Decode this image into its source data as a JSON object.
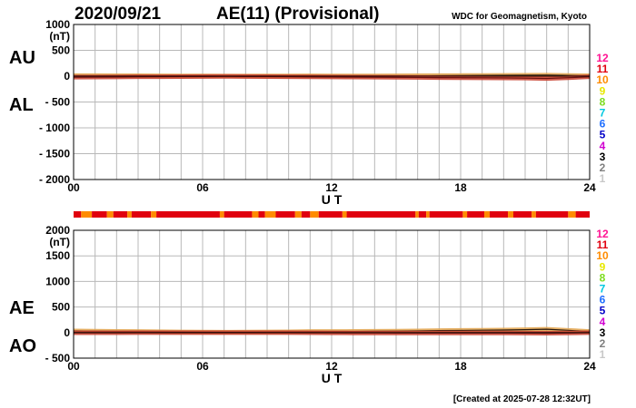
{
  "header": {
    "date": "2020/09/21",
    "index_title": "AE(11) (Provisional)",
    "source": "WDC for Geomagnetism, Kyoto"
  },
  "footer": {
    "created": "[Created at 2025-07-28 12:32UT]"
  },
  "legend": {
    "items": [
      {
        "label": "12",
        "color": "#ff1493"
      },
      {
        "label": "11",
        "color": "#e0000f"
      },
      {
        "label": "10",
        "color": "#ff8c00"
      },
      {
        "label": "9",
        "color": "#e8e800"
      },
      {
        "label": "8",
        "color": "#7ddc1f"
      },
      {
        "label": "7",
        "color": "#00c8e0"
      },
      {
        "label": "6",
        "color": "#1e6eff"
      },
      {
        "label": "5",
        "color": "#0000c8"
      },
      {
        "label": "4",
        "color": "#d000d0"
      },
      {
        "label": "3",
        "color": "#000000"
      },
      {
        "label": "2",
        "color": "#808080"
      },
      {
        "label": "1",
        "color": "#c8c8c8"
      }
    ]
  },
  "chart_data": [
    {
      "type": "line",
      "panel": "AU / AL",
      "upper_label": "AU",
      "lower_label": "AL",
      "unit": "(nT)",
      "xlabel": "U T",
      "xlim": [
        0,
        24
      ],
      "x_ticks": [
        "00",
        "06",
        "12",
        "18",
        "24"
      ],
      "ylim": [
        -2000,
        1000
      ],
      "y_ticks": [
        1000,
        500,
        0,
        -500,
        -1000,
        -1500,
        -2000
      ],
      "y_tick_labels": [
        "1000",
        "500",
        "0",
        "- 500",
        "- 1000",
        "- 1500",
        "- 2000"
      ],
      "grid": true,
      "x": [
        0,
        1,
        2,
        3,
        4,
        5,
        6,
        7,
        8,
        9,
        10,
        11,
        12,
        13,
        14,
        15,
        16,
        17,
        18,
        19,
        20,
        21,
        22,
        23,
        24
      ],
      "series": [
        {
          "name": "AU",
          "values": [
            12,
            10,
            9,
            8,
            6,
            5,
            4,
            3,
            3,
            4,
            5,
            6,
            5,
            4,
            5,
            6,
            8,
            10,
            12,
            14,
            16,
            18,
            20,
            14,
            8
          ]
        },
        {
          "name": "AL",
          "values": [
            -20,
            -18,
            -15,
            -12,
            -10,
            -8,
            -6,
            -5,
            -6,
            -8,
            -10,
            -14,
            -16,
            -18,
            -20,
            -22,
            -25,
            -28,
            -30,
            -32,
            -34,
            -38,
            -45,
            -30,
            -12
          ]
        }
      ]
    },
    {
      "type": "line",
      "panel": "AE / AO",
      "upper_label": "AE",
      "lower_label": "AO",
      "unit": "(nT)",
      "xlabel": "U T",
      "xlim": [
        0,
        24
      ],
      "x_ticks": [
        "00",
        "06",
        "12",
        "18",
        "24"
      ],
      "ylim": [
        -500,
        2000
      ],
      "y_ticks": [
        2000,
        1500,
        1000,
        500,
        0,
        -500
      ],
      "y_tick_labels": [
        "2000",
        "1500",
        "1000",
        "500",
        "0",
        "- 500"
      ],
      "grid": true,
      "x": [
        0,
        1,
        2,
        3,
        4,
        5,
        6,
        7,
        8,
        9,
        10,
        11,
        12,
        13,
        14,
        15,
        16,
        17,
        18,
        19,
        20,
        21,
        22,
        23,
        24
      ],
      "series": [
        {
          "name": "AE",
          "values": [
            32,
            28,
            24,
            20,
            16,
            13,
            10,
            8,
            9,
            12,
            15,
            20,
            21,
            22,
            25,
            28,
            33,
            38,
            42,
            46,
            50,
            56,
            65,
            44,
            20
          ]
        },
        {
          "name": "AO",
          "values": [
            -4,
            -4,
            -3,
            -2,
            -2,
            -1,
            -1,
            -1,
            -1,
            -2,
            -2,
            -4,
            -5,
            -7,
            -7,
            -8,
            -8,
            -9,
            -9,
            -9,
            -9,
            -10,
            -12,
            -8,
            -2
          ]
        }
      ]
    }
  ],
  "station_bar": {
    "segments": [
      {
        "start": 0.0,
        "end": 0.35,
        "stations": 11
      },
      {
        "start": 0.35,
        "end": 0.85,
        "stations": 10
      },
      {
        "start": 0.85,
        "end": 1.55,
        "stations": 11
      },
      {
        "start": 1.55,
        "end": 1.85,
        "stations": 10
      },
      {
        "start": 1.85,
        "end": 2.5,
        "stations": 11
      },
      {
        "start": 2.5,
        "end": 2.7,
        "stations": 10
      },
      {
        "start": 2.7,
        "end": 3.6,
        "stations": 11
      },
      {
        "start": 3.6,
        "end": 3.85,
        "stations": 10
      },
      {
        "start": 3.85,
        "end": 6.8,
        "stations": 11
      },
      {
        "start": 6.8,
        "end": 7.0,
        "stations": 10
      },
      {
        "start": 7.0,
        "end": 8.3,
        "stations": 11
      },
      {
        "start": 8.3,
        "end": 8.6,
        "stations": 10
      },
      {
        "start": 8.6,
        "end": 8.9,
        "stations": 11
      },
      {
        "start": 8.9,
        "end": 9.4,
        "stations": 10
      },
      {
        "start": 9.4,
        "end": 10.3,
        "stations": 11
      },
      {
        "start": 10.3,
        "end": 10.6,
        "stations": 10
      },
      {
        "start": 10.6,
        "end": 11.0,
        "stations": 11
      },
      {
        "start": 11.0,
        "end": 11.4,
        "stations": 10
      },
      {
        "start": 11.4,
        "end": 12.5,
        "stations": 11
      },
      {
        "start": 12.5,
        "end": 12.7,
        "stations": 10
      },
      {
        "start": 12.7,
        "end": 15.9,
        "stations": 11
      },
      {
        "start": 15.9,
        "end": 16.05,
        "stations": 10
      },
      {
        "start": 16.05,
        "end": 16.4,
        "stations": 11
      },
      {
        "start": 16.4,
        "end": 16.55,
        "stations": 10
      },
      {
        "start": 16.55,
        "end": 18.1,
        "stations": 11
      },
      {
        "start": 18.1,
        "end": 18.3,
        "stations": 10
      },
      {
        "start": 18.3,
        "end": 19.1,
        "stations": 11
      },
      {
        "start": 19.1,
        "end": 19.35,
        "stations": 10
      },
      {
        "start": 19.35,
        "end": 20.2,
        "stations": 11
      },
      {
        "start": 20.2,
        "end": 20.45,
        "stations": 10
      },
      {
        "start": 20.45,
        "end": 21.3,
        "stations": 11
      },
      {
        "start": 21.3,
        "end": 21.5,
        "stations": 10
      },
      {
        "start": 21.5,
        "end": 23.0,
        "stations": 11
      },
      {
        "start": 23.0,
        "end": 23.35,
        "stations": 10
      },
      {
        "start": 23.35,
        "end": 24.0,
        "stations": 11
      }
    ]
  }
}
